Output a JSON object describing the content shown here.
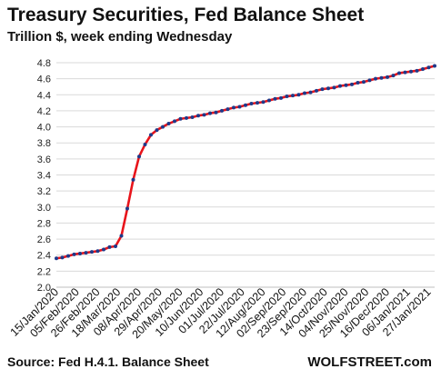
{
  "header": {
    "title": "Treasury Securities, Fed Balance Sheet",
    "subtitle": "Trillion $, week ending Wednesday"
  },
  "footer": {
    "source": "Source: Fed H.4.1. Balance Sheet",
    "brand": "WOLFSTREET.com"
  },
  "colors": {
    "line": "#e8141b",
    "marker": "#1f3a8a",
    "grid": "#d9d9d9"
  },
  "chart_data": {
    "type": "line",
    "title": "Treasury Securities, Fed Balance Sheet",
    "ylabel": "Trillion $, week ending Wednesday",
    "ylim": [
      2.0,
      4.8
    ],
    "yticks": [
      2.0,
      2.2,
      2.4,
      2.6,
      2.8,
      3.0,
      3.2,
      3.4,
      3.6,
      3.8,
      4.0,
      4.2,
      4.4,
      4.6,
      4.8
    ],
    "grid": true,
    "legend": "none",
    "xtick_labels": [
      "15/Jan/2020",
      "05/Feb/2020",
      "26/Feb/2020",
      "18/Mar/2020",
      "08/Apr/2020",
      "29/Apr/2020",
      "20/May/2020",
      "10/Jun/2020",
      "01/Jul/2020",
      "22/Jul/2020",
      "12/Aug/2020",
      "02/Sep/2020",
      "23/Sep/2020",
      "14/Oct/2020",
      "04/Nov/2020",
      "25/Nov/2020",
      "16/Dec/2020",
      "06/Jan/2021",
      "27/Jan/2021"
    ],
    "series": [
      {
        "values": [
          2.36,
          2.37,
          2.39,
          2.41,
          2.42,
          2.43,
          2.44,
          2.45,
          2.47,
          2.5,
          2.51,
          2.64,
          2.98,
          3.34,
          3.63,
          3.78,
          3.9,
          3.96,
          4.0,
          4.04,
          4.07,
          4.1,
          4.11,
          4.12,
          4.14,
          4.15,
          4.17,
          4.18,
          4.2,
          4.22,
          4.24,
          4.25,
          4.27,
          4.29,
          4.3,
          4.31,
          4.33,
          4.35,
          4.36,
          4.38,
          4.39,
          4.4,
          4.42,
          4.43,
          4.45,
          4.47,
          4.48,
          4.49,
          4.51,
          4.52,
          4.53,
          4.55,
          4.56,
          4.58,
          4.6,
          4.61,
          4.62,
          4.64,
          4.67,
          4.68,
          4.69,
          4.7,
          4.72,
          4.74,
          4.76
        ]
      }
    ]
  }
}
